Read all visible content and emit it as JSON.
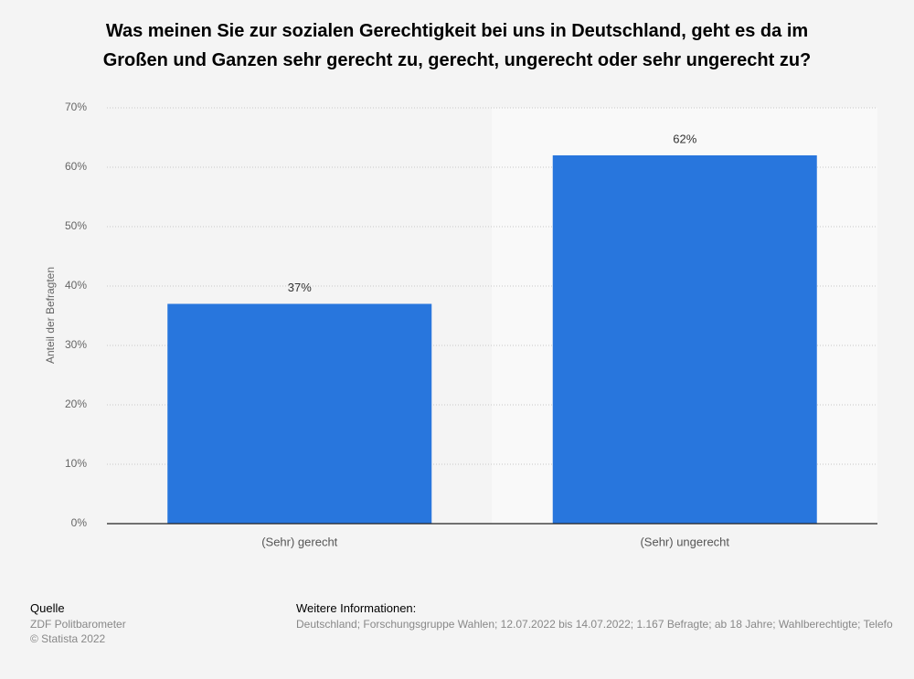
{
  "chart_data": {
    "type": "bar",
    "title": "Was meinen Sie zur sozialen Gerechtigkeit bei uns in Deutschland, geht es da im Großen und Ganzen sehr gerecht zu, gerecht, ungerecht oder sehr ungerecht zu?",
    "y_label": "Anteil der Befragten",
    "categories": [
      "(Sehr) gerecht",
      "(Sehr) ungerecht"
    ],
    "values": [
      37,
      62
    ],
    "value_labels": [
      "37%",
      "62%"
    ],
    "color": "#2876dd",
    "ylim": [
      0,
      70
    ],
    "yticks": [
      {
        "value": 0,
        "label": "0%"
      },
      {
        "value": 10,
        "label": "10%"
      },
      {
        "value": 20,
        "label": "20%"
      },
      {
        "value": 30,
        "label": "30%"
      },
      {
        "value": 40,
        "label": "40%"
      },
      {
        "value": 50,
        "label": "50%"
      },
      {
        "value": 60,
        "label": "60%"
      },
      {
        "value": 70,
        "label": "70%"
      }
    ],
    "grid": true
  },
  "footer": {
    "source_heading": "Quelle",
    "source": "ZDF Politbarometer",
    "copyright": "© Statista 2022",
    "info_heading": "Weitere Informationen:",
    "info": "Deutschland; Forschungsgruppe Wahlen; 12.07.2022 bis 14.07.2022; 1.167 Befragte; ab 18 Jahre; Wahlberechtigte; Telefo"
  }
}
